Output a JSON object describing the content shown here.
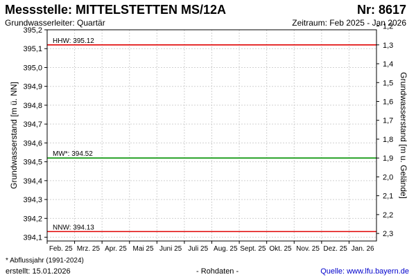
{
  "header": {
    "title": "Messstelle: MITTELSTETTEN MS/12A",
    "station_no": "Nr: 8617",
    "aquifer": "Grundwasserleiter: Quartär",
    "period": "Zeitraum: Feb 2025 - Jan 2026"
  },
  "footer": {
    "footnote": "* Abflussjahr (1991-2024)",
    "created": "erstellt:  15.01.2026",
    "raw_data": "- Rohdaten -",
    "source": "Quelle: www.lfu.bayern.de"
  },
  "chart_data": {
    "type": "line",
    "title": "",
    "xlabel": "",
    "ylabel": "Grundwasserstand [m ü. NN]",
    "y2label": "Grundwasserstand [m u. Gelände]",
    "categories": [
      "Feb. 25",
      "Mrz. 25",
      "Apr. 25",
      "Mai 25",
      "Juni 25",
      "Juli 25",
      "Aug. 25",
      "Sept. 25",
      "Okt. 25",
      "Nov. 25",
      "Dez. 25",
      "Jan. 26"
    ],
    "ylim": [
      394.08,
      395.2
    ],
    "y_ticks": [
      "395,2",
      "395,1",
      "395,0",
      "394,9",
      "394,8",
      "394,7",
      "394,6",
      "394,5",
      "394,4",
      "394,3",
      "394,2",
      "394,1"
    ],
    "y2_ticks": [
      "1,2",
      "1,3",
      "1,4",
      "1,5",
      "1,6",
      "1,7",
      "1,8",
      "1,9",
      "2,0",
      "2,1",
      "2,2",
      "2,3"
    ],
    "y2_reference_level": 396.42,
    "grid": true,
    "reference_lines": [
      {
        "label": "HHW: 395.12",
        "value": 395.12,
        "color": "#e00000"
      },
      {
        "label": "MW*: 394.52",
        "value": 394.52,
        "color": "#009000"
      },
      {
        "label": "NNW: 394.13",
        "value": 394.13,
        "color": "#e00000"
      }
    ],
    "series": []
  }
}
